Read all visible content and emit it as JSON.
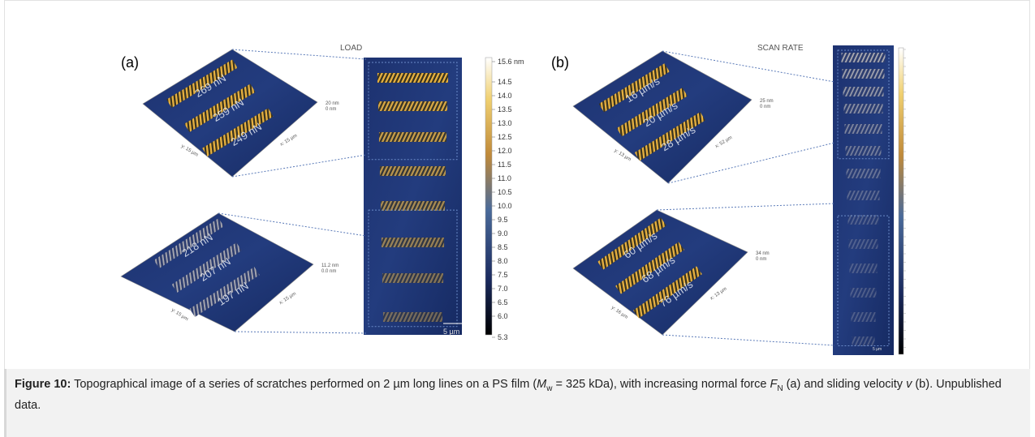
{
  "figure": {
    "panel_a": {
      "letter": "(a)",
      "title": "LOAD",
      "view_top": {
        "labels": [
          "269 nN",
          "259 nN",
          "249 nN"
        ],
        "y_axis": "y: 15 µm",
        "x_axis": "x: 15 µm",
        "z_max": "20 nm",
        "z_min": "0 nm"
      },
      "view_bottom": {
        "labels": [
          "218 nN",
          "207 nN",
          "197 nN"
        ],
        "y_axis": "y: 15 µm",
        "x_axis": "x: 15 µm",
        "z_max": "11.2 nm",
        "z_min": "0.0 nm"
      },
      "colorbar": [
        "15.6 nm",
        "14.5",
        "14.0",
        "13.5",
        "13.0",
        "12.5",
        "12.0",
        "11.5",
        "11.0",
        "10.5",
        "10.0",
        "9.5",
        "9.0",
        "8.5",
        "8.0",
        "7.5",
        "7.0",
        "6.5",
        "6.0",
        "5.3"
      ],
      "scale_bar": "5 µm"
    },
    "panel_b": {
      "letter": "(b)",
      "title": "SCAN RATE",
      "view_top": {
        "labels": [
          "16 µm/s",
          "20 µm/s",
          "28 µm/s"
        ],
        "y_axis": "y: 13 µm",
        "x_axis": "x: 52 µm",
        "z_max": "25 nm",
        "z_min": "0 nm"
      },
      "view_bottom": {
        "labels": [
          "60 µm/s",
          "68 µm/s",
          "76 µm/s"
        ],
        "y_axis": "y: 16 µm",
        "x_axis": "x: 13 µm",
        "z_max": "34 nm",
        "z_min": "0 nm"
      },
      "scale_bar": "5 µm"
    }
  },
  "caption": {
    "label": "Figure 10:",
    "text_1": " Topographical image of a series of scratches performed on 2 µm long lines on a PS film (",
    "m": "M",
    "w": "w",
    "text_2": " = 325 kDa), with increasing normal force ",
    "f": "F",
    "n": "N",
    "text_3": " (a) and sliding velocity ",
    "v": "v",
    "text_4": " (b). Unpublished data."
  }
}
